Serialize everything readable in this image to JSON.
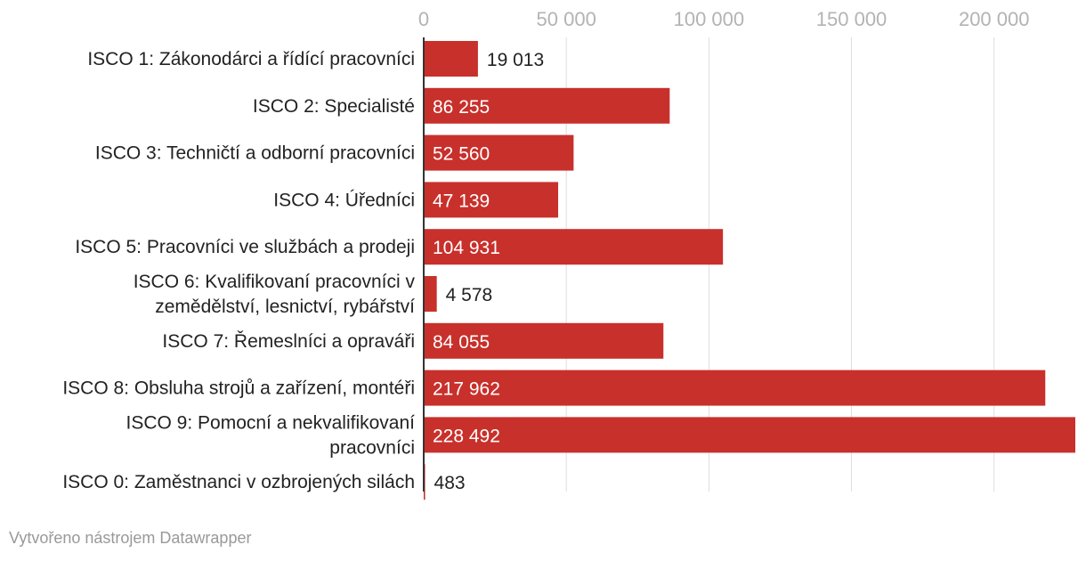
{
  "colors": {
    "bar": "#c8302b",
    "grid": "#dddddd",
    "axis": "#333333",
    "tick": "#b3b3b3",
    "label_dark": "#222222",
    "label_light": "#ffffff"
  },
  "chart_data": {
    "type": "bar",
    "orientation": "horizontal",
    "categories": [
      [
        "ISCO 1: Zákonodárci a řídící pracovníci"
      ],
      [
        "ISCO 2: Specialisté"
      ],
      [
        "ISCO 3: Techničtí a odborní pracovníci"
      ],
      [
        "ISCO 4: Úředníci"
      ],
      [
        "ISCO 5: Pracovníci ve službách a prodeji"
      ],
      [
        "ISCO 6: Kvalifikovaní pracovníci v",
        "zemědělství, lesnictví, rybářství"
      ],
      [
        "ISCO 7: Řemeslníci a opraváři"
      ],
      [
        "ISCO 8: Obsluha strojů a zařízení, montéři"
      ],
      [
        "ISCO 9: Pomocní a nekvalifikovaní",
        "pracovníci"
      ],
      [
        "ISCO 0: Zaměstnanci v ozbrojených silách"
      ]
    ],
    "values": [
      19013,
      86255,
      52560,
      47139,
      104931,
      4578,
      84055,
      217962,
      228492,
      483
    ],
    "value_labels": [
      "19 013",
      "86 255",
      "52 560",
      "47 139",
      "104 931",
      "4 578",
      "84 055",
      "217 962",
      "228 492",
      "483"
    ],
    "xticks": [
      0,
      50000,
      100000,
      150000,
      200000
    ],
    "xtick_labels": [
      "0",
      "50 000",
      "100 000",
      "150 000",
      "200 000"
    ],
    "xlim": [
      0,
      228492
    ],
    "grid": true,
    "axis_position": "top"
  },
  "credit": "Vytvořeno nástrojem Datawrapper"
}
